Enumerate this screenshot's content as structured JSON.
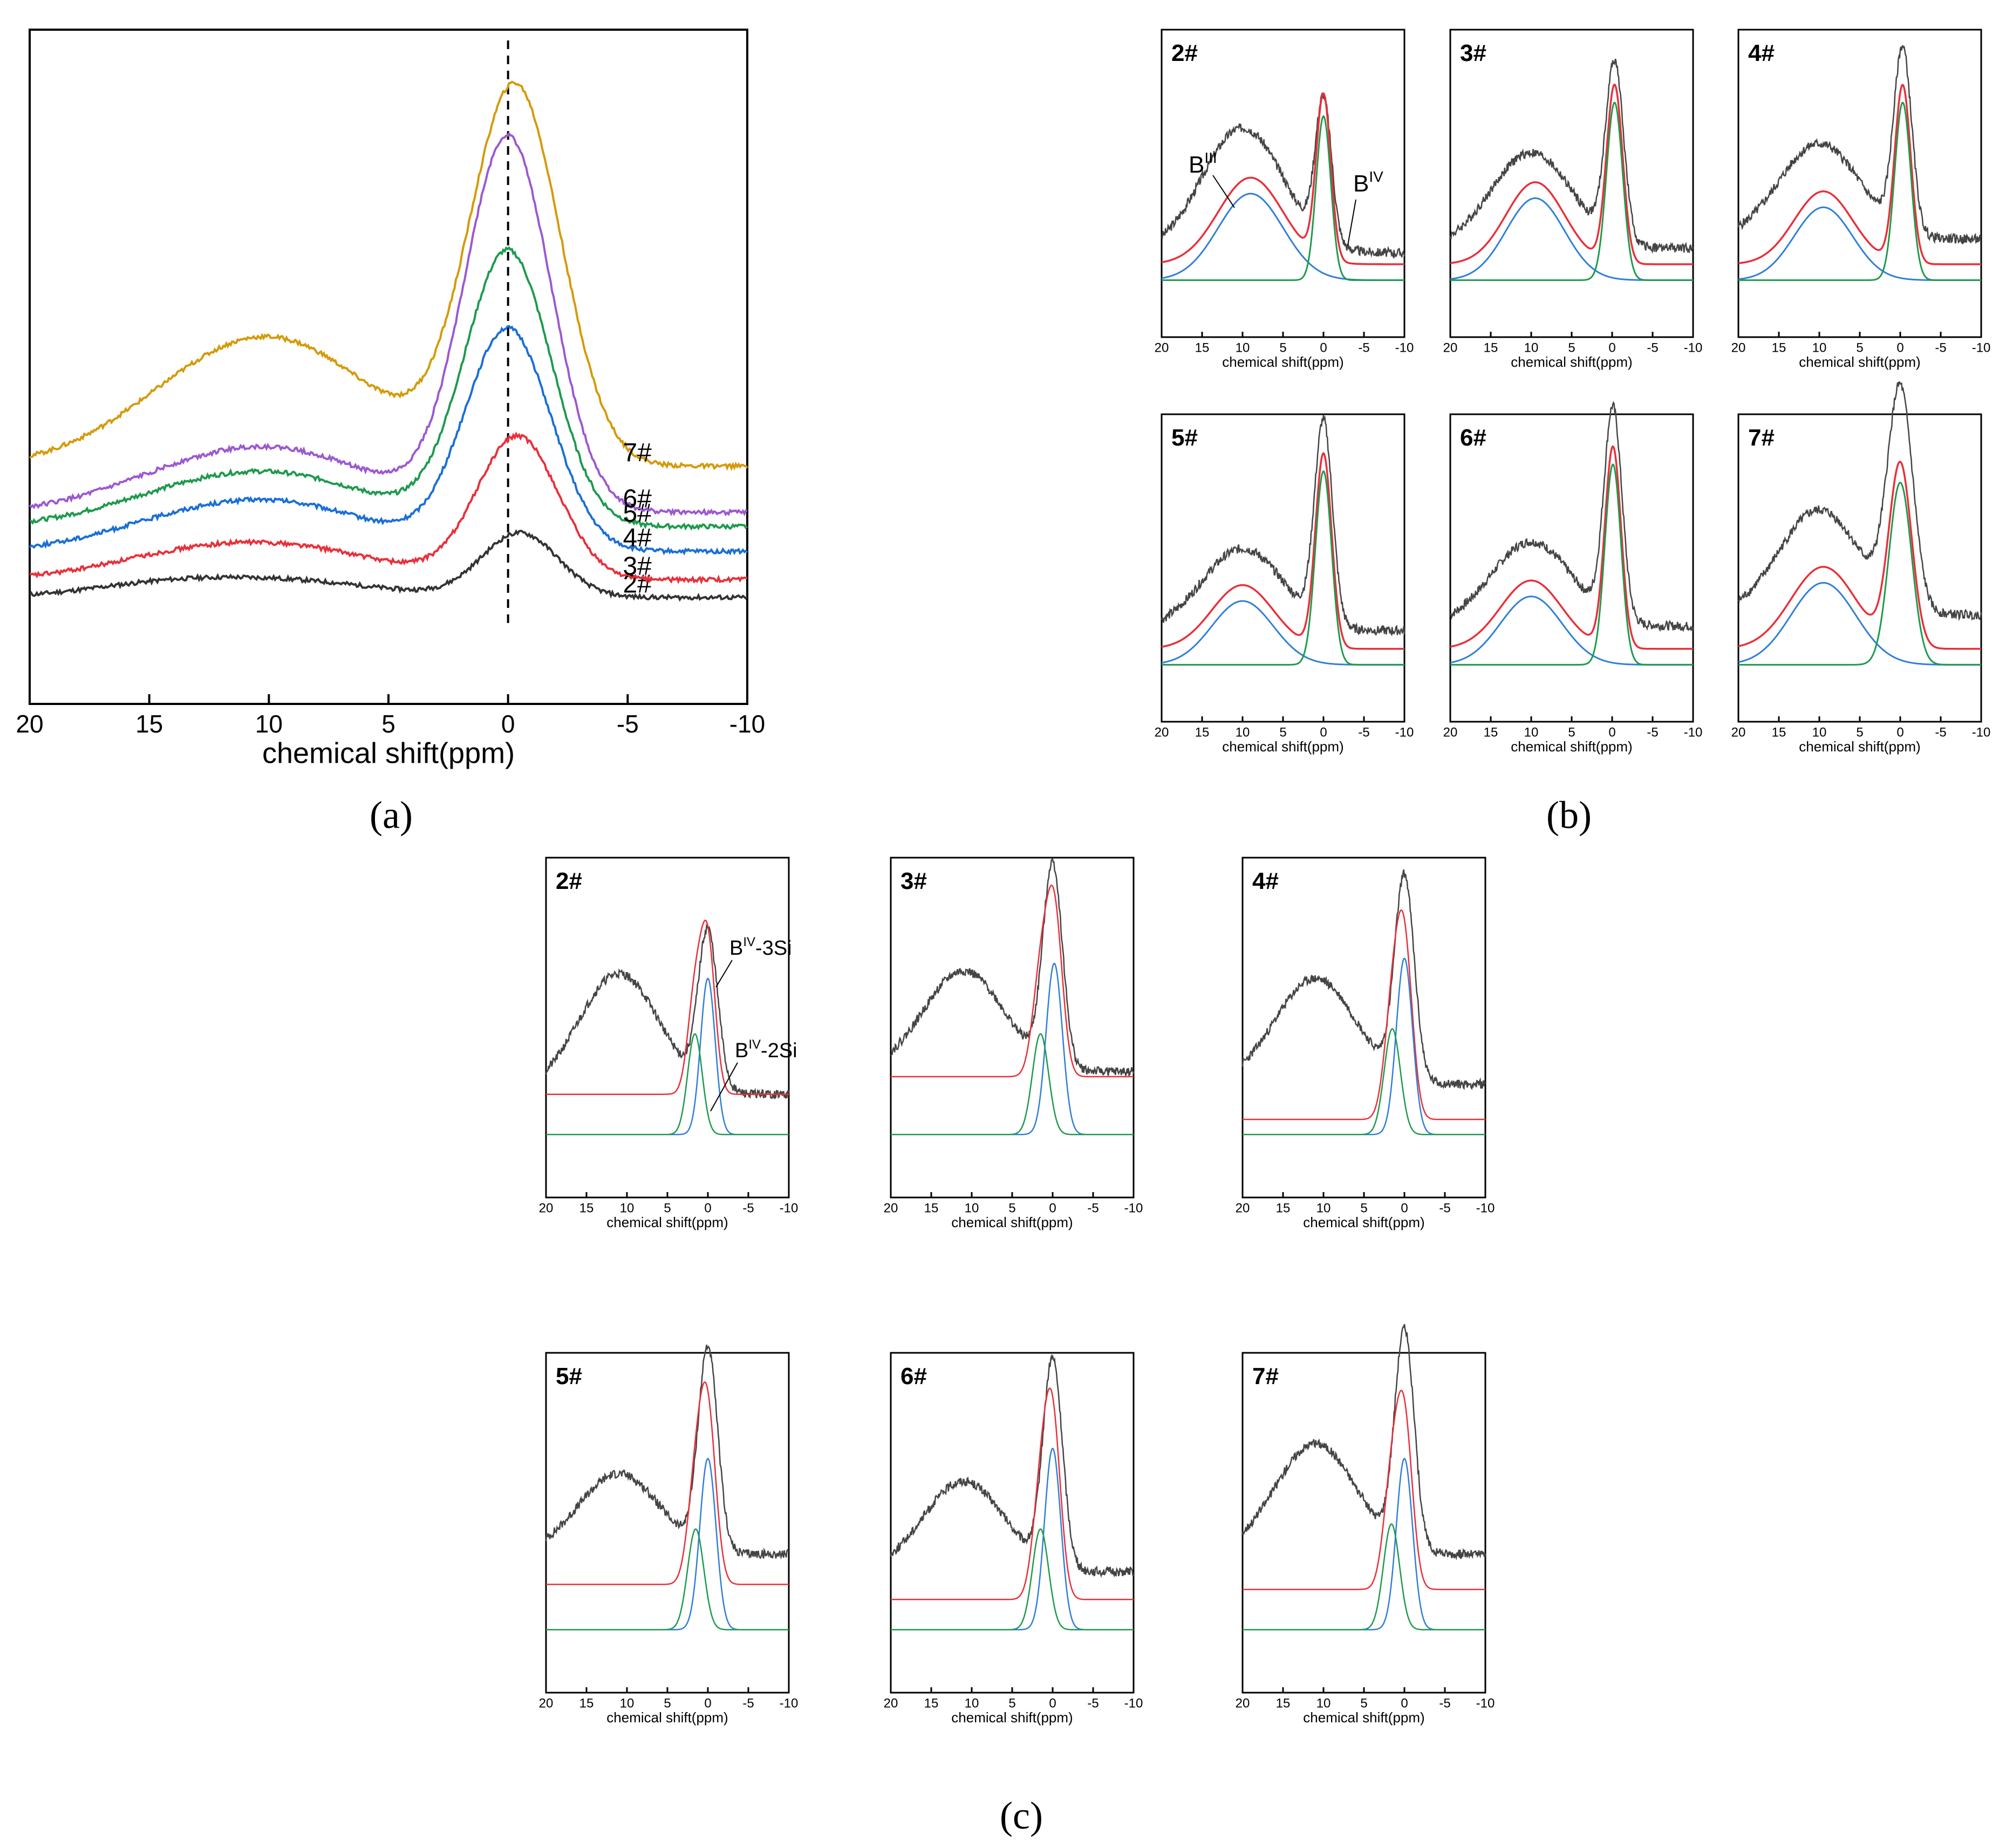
{
  "figure": {
    "captions": {
      "a": "(a)",
      "b": "(b)",
      "c": "(c)"
    }
  },
  "chart_data": [
    {
      "id": "a",
      "type": "line",
      "title": "",
      "xlabel": "chemical shift(ppm)",
      "ylabel": "",
      "xlim": [
        20,
        -10
      ],
      "x_ticks": [
        20,
        15,
        10,
        5,
        0,
        -5,
        -10
      ],
      "x_tick_labels": [
        "20",
        "15",
        "10",
        "5",
        "0",
        "-5",
        "-10"
      ],
      "reference_line_x": 0,
      "series": [
        {
          "name": "2#",
          "color": "#333333",
          "baseline": 0.0,
          "amp3": 0.05,
          "amp4": 0.18,
          "c4": -0.5,
          "w4": 1.6,
          "tail": 0.0
        },
        {
          "name": "3#",
          "color": "#e8303a",
          "baseline": 0.05,
          "amp3": 0.1,
          "amp4": 0.4,
          "c4": -0.4,
          "w4": 1.7,
          "tail": 0.0
        },
        {
          "name": "4#",
          "color": "#1a6fd6",
          "baseline": 0.13,
          "amp3": 0.14,
          "amp4": 0.62,
          "c4": 0.0,
          "w4": 1.8,
          "tail": 0.0
        },
        {
          "name": "5#",
          "color": "#1e9a4e",
          "baseline": 0.2,
          "amp3": 0.15,
          "amp4": 0.77,
          "c4": 0.0,
          "w4": 1.8,
          "tail": 0.0
        },
        {
          "name": "6#",
          "color": "#9b59d0",
          "baseline": 0.24,
          "amp3": 0.18,
          "amp4": 1.05,
          "c4": 0.0,
          "w4": 1.8,
          "tail": 0.0
        },
        {
          "name": "7#",
          "color": "#d49a08",
          "baseline": 0.37,
          "amp3": 0.36,
          "amp4": 1.06,
          "c4": -0.3,
          "w4": 1.9,
          "tail": 0.0
        }
      ]
    },
    {
      "id": "b",
      "type": "line",
      "description": "BIII / BIV deconvolution panels",
      "xlabel": "chemical shift(ppm)",
      "xlim": [
        20,
        -10
      ],
      "x_tick_labels": [
        "20",
        "15",
        "10",
        "5",
        "0",
        "-5",
        "-10"
      ],
      "annotations": [
        "B",
        "III",
        "B",
        "IV"
      ],
      "panels": [
        {
          "label": "2#",
          "raw_amp3": 0.55,
          "raw_amp4": 0.62,
          "fit_amp3": 0.38,
          "fit_amp4": 0.72,
          "c3": 9,
          "w3": 4.0,
          "c4": 0.0,
          "w4": 0.9,
          "raw_tail": 0.12
        },
        {
          "label": "3#",
          "raw_amp3": 0.42,
          "raw_amp4": 0.78,
          "fit_amp3": 0.36,
          "fit_amp4": 0.78,
          "c3": 9.5,
          "w3": 3.6,
          "c4": -0.3,
          "w4": 1.0,
          "raw_tail": 0.14
        },
        {
          "label": "4#",
          "raw_amp3": 0.42,
          "raw_amp4": 0.8,
          "fit_amp3": 0.32,
          "fit_amp4": 0.78,
          "c3": 9.5,
          "w3": 3.6,
          "c4": -0.3,
          "w4": 1.0,
          "raw_tail": 0.18
        },
        {
          "label": "5#",
          "raw_amp3": 0.36,
          "raw_amp4": 0.88,
          "fit_amp3": 0.28,
          "fit_amp4": 0.85,
          "c3": 10,
          "w3": 3.8,
          "c4": 0.0,
          "w4": 1.0,
          "raw_tail": 0.15
        },
        {
          "label": "6#",
          "raw_amp3": 0.37,
          "raw_amp4": 0.92,
          "fit_amp3": 0.3,
          "fit_amp4": 0.88,
          "c3": 10,
          "w3": 3.8,
          "c4": -0.1,
          "w4": 1.0,
          "raw_tail": 0.17
        },
        {
          "label": "7#",
          "raw_amp3": 0.46,
          "raw_amp4": 0.95,
          "fit_amp3": 0.36,
          "fit_amp4": 0.8,
          "c3": 9.5,
          "w3": 4.0,
          "c4": 0.0,
          "w4": 1.4,
          "raw_tail": 0.22
        }
      ],
      "series_colors": {
        "raw": "#444444",
        "envelope": "#e8303a",
        "BIII": "#2f7fd8",
        "BIV": "#1e9a4e"
      }
    },
    {
      "id": "c",
      "type": "line",
      "description": "BIV-3Si / BIV-2Si deconvolution panels",
      "xlabel": "chemical shift(ppm)",
      "xlim": [
        20,
        -10
      ],
      "x_tick_labels": [
        "20",
        "15",
        "10",
        "5",
        "0",
        "-5",
        "-10"
      ],
      "annotations": [
        "B",
        "IV",
        "-3Si",
        "B",
        "IV",
        "-2Si"
      ],
      "panels": [
        {
          "label": "2#",
          "raw_amp3": 0.48,
          "raw_amp4": 0.62,
          "envelope_offset": 0.16,
          "amp_3Si": 0.62,
          "c_3Si": 0.0,
          "w_3Si": 0.9,
          "amp_2Si": 0.4,
          "c_2Si": 1.6,
          "w_2Si": 0.9,
          "raw_tail": 0.16
        },
        {
          "label": "3#",
          "raw_amp3": 0.4,
          "raw_amp4": 0.8,
          "envelope_offset": 0.23,
          "amp_3Si": 0.68,
          "c_3Si": -0.2,
          "w_3Si": 1.0,
          "amp_2Si": 0.4,
          "c_2Si": 1.5,
          "w_2Si": 1.0,
          "raw_tail": 0.25
        },
        {
          "label": "4#",
          "raw_amp3": 0.42,
          "raw_amp4": 0.8,
          "envelope_offset": 0.06,
          "amp_3Si": 0.7,
          "c_3Si": 0.0,
          "w_3Si": 1.0,
          "amp_2Si": 0.42,
          "c_2Si": 1.5,
          "w_2Si": 1.0,
          "raw_tail": 0.2
        },
        {
          "label": "5#",
          "raw_amp3": 0.32,
          "raw_amp4": 0.8,
          "envelope_offset": 0.18,
          "amp_3Si": 0.68,
          "c_3Si": 0.0,
          "w_3Si": 1.0,
          "amp_2Si": 0.4,
          "c_2Si": 1.5,
          "w_2Si": 1.0,
          "raw_tail": 0.3
        },
        {
          "label": "6#",
          "raw_amp3": 0.36,
          "raw_amp4": 0.82,
          "envelope_offset": 0.12,
          "amp_3Si": 0.72,
          "c_3Si": 0.0,
          "w_3Si": 1.0,
          "amp_2Si": 0.4,
          "c_2Si": 1.5,
          "w_2Si": 1.0,
          "raw_tail": 0.23
        },
        {
          "label": "7#",
          "raw_amp3": 0.44,
          "raw_amp4": 0.86,
          "envelope_offset": 0.16,
          "amp_3Si": 0.68,
          "c_3Si": 0.0,
          "w_3Si": 1.0,
          "amp_2Si": 0.42,
          "c_2Si": 1.6,
          "w_2Si": 1.0,
          "raw_tail": 0.3
        }
      ],
      "series_colors": {
        "raw": "#444444",
        "envelope": "#e8303a",
        "BIV-3Si": "#2f7fd8",
        "BIV-2Si": "#1e9a4e"
      }
    }
  ]
}
